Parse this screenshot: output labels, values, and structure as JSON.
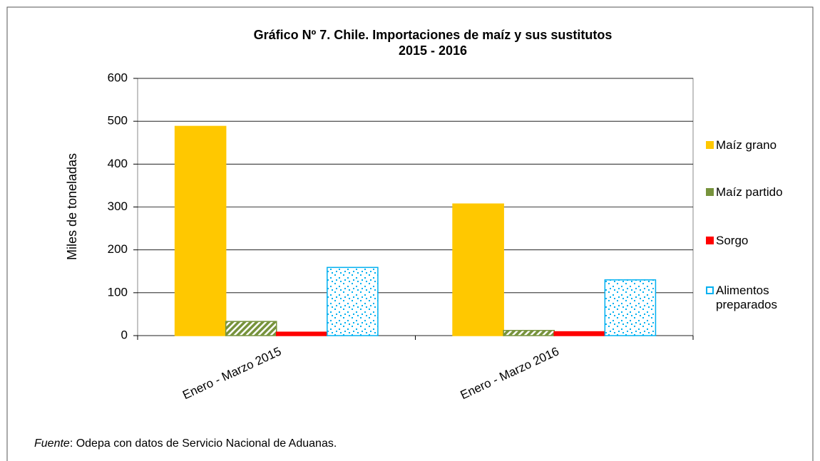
{
  "chart_data": {
    "type": "bar",
    "title": "Gráfico Nº 7. Chile. Importaciones de maíz y sus sustitutos",
    "subtitle": "2015 - 2016",
    "y_label": "Miles de toneladas",
    "categories": [
      "Enero - Marzo 2015",
      "Enero - Marzo 2016"
    ],
    "series": [
      {
        "name": "Maíz grano",
        "color": "#ffc800",
        "values": [
          488,
          307
        ]
      },
      {
        "name": "Maíz partido",
        "color": "#77933c",
        "values": [
          33,
          12
        ]
      },
      {
        "name": "Sorgo",
        "color": "#ff0000",
        "values": [
          8,
          9
        ]
      },
      {
        "name": "Alimentos preparados",
        "color": "#00b0f0",
        "values": [
          159,
          130
        ]
      }
    ],
    "ylim": [
      0,
      600
    ],
    "yticks": [
      0,
      100,
      200,
      300,
      400,
      500,
      600
    ],
    "grid": true,
    "legend": "right",
    "source_label": "Fuente",
    "source_text": ": Odepa con datos de Servicio Nacional de Aduanas."
  }
}
